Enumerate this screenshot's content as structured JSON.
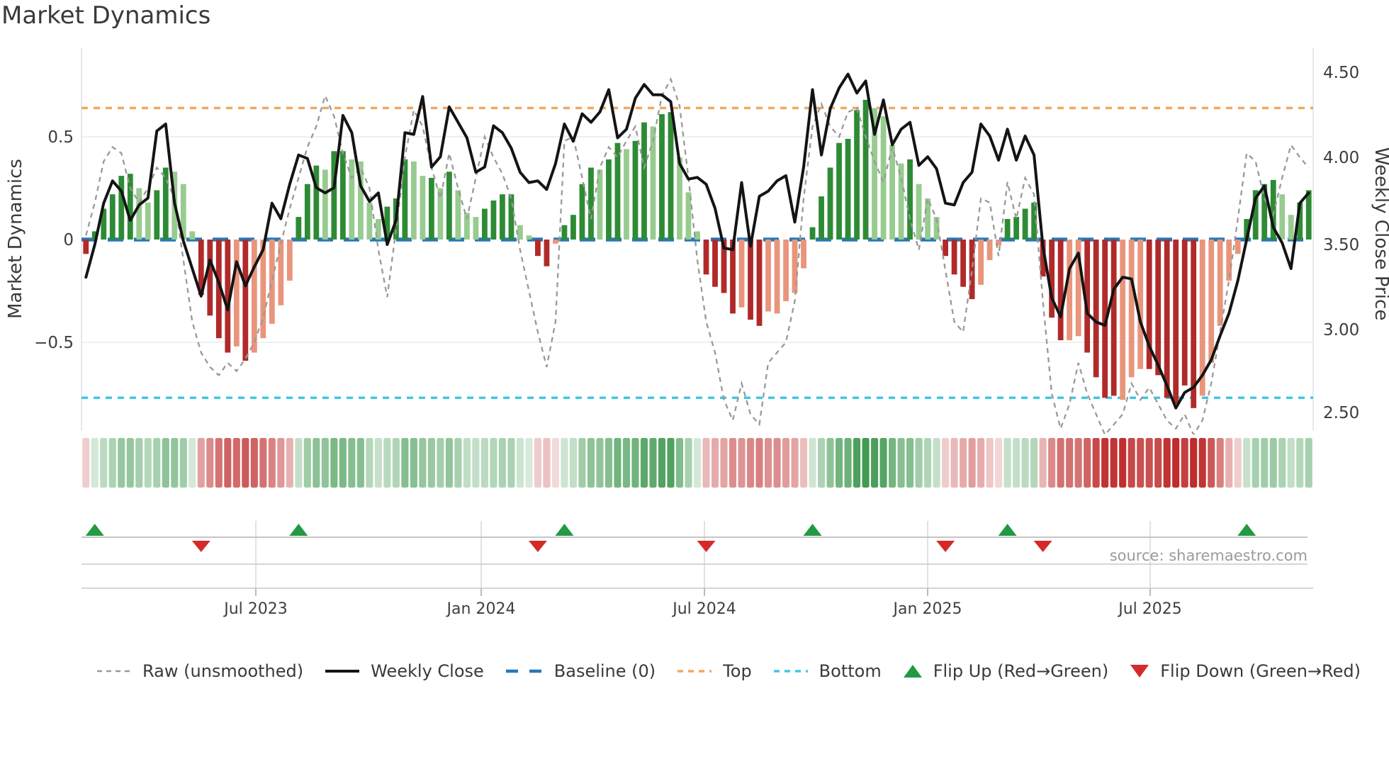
{
  "page": {
    "title": "Market Dynamics",
    "source_note": "source: sharemaestro.com"
  },
  "chart_data": {
    "type": "combo",
    "description": "Weekly oscillator bar chart (Market Dynamics, left axis) with smoothed weekly close price line (right axis), raw unsmoothed oscillator dashed line, baseline and top/bottom threshold lines, a color-intensity heatmap strip of the oscillator, and flip up/down trend-change markers.",
    "title": "Market Dynamics",
    "left_axis": {
      "label": "Market Dynamics",
      "tick_labels": [
        "0.5",
        "0",
        "−0.5"
      ],
      "tick_values": [
        0.5,
        0,
        -0.5
      ]
    },
    "right_axis": {
      "label": "Weekly Close Price",
      "tick_labels": [
        "4.50",
        "4.00",
        "3.50",
        "3.00",
        "2.50"
      ],
      "tick_values": [
        4.5,
        4.0,
        3.5,
        3.0,
        2.5
      ]
    },
    "x_ticks": [
      {
        "label": "Jul 2023"
      },
      {
        "label": "Jan 2024"
      },
      {
        "label": "Jul 2024"
      },
      {
        "label": "Jan 2025"
      },
      {
        "label": "Jul 2025"
      }
    ],
    "baseline_value": 0,
    "top_threshold": 0.64,
    "bottom_threshold": -0.77,
    "bars": {
      "name": "Market Dynamics oscillator (weekly)",
      "values": [
        -0.07,
        0.04,
        0.15,
        0.22,
        0.31,
        0.32,
        0.25,
        0.18,
        0.24,
        0.35,
        0.33,
        0.27,
        0.04,
        -0.27,
        -0.37,
        -0.48,
        -0.55,
        -0.52,
        -0.59,
        -0.55,
        -0.48,
        -0.41,
        -0.32,
        -0.2,
        0.11,
        0.27,
        0.36,
        0.34,
        0.43,
        0.43,
        0.39,
        0.38,
        0.18,
        0.1,
        0.16,
        0.2,
        0.39,
        0.38,
        0.31,
        0.3,
        0.25,
        0.33,
        0.24,
        0.13,
        0.11,
        0.15,
        0.19,
        0.22,
        0.22,
        0.07,
        0.02,
        -0.08,
        -0.13,
        -0.02,
        0.07,
        0.12,
        0.27,
        0.35,
        0.34,
        0.39,
        0.47,
        0.44,
        0.48,
        0.57,
        0.55,
        0.61,
        0.62,
        0.4,
        0.23,
        0.04,
        -0.17,
        -0.23,
        -0.26,
        -0.36,
        -0.33,
        -0.39,
        -0.42,
        -0.35,
        -0.36,
        -0.3,
        -0.26,
        -0.14,
        0.06,
        0.21,
        0.35,
        0.47,
        0.49,
        0.63,
        0.68,
        0.64,
        0.6,
        0.46,
        0.37,
        0.39,
        0.27,
        0.2,
        0.11,
        -0.08,
        -0.17,
        -0.23,
        -0.29,
        -0.22,
        -0.1,
        -0.03,
        0.1,
        0.11,
        0.15,
        0.18,
        -0.18,
        -0.38,
        -0.49,
        -0.49,
        -0.47,
        -0.55,
        -0.67,
        -0.77,
        -0.76,
        -0.78,
        -0.67,
        -0.63,
        -0.63,
        -0.66,
        -0.77,
        -0.8,
        -0.71,
        -0.82,
        -0.76,
        -0.6,
        -0.42,
        -0.2,
        -0.07,
        0.1,
        0.24,
        0.27,
        0.29,
        0.22,
        0.12,
        0.18,
        0.24
      ],
      "shades": "ddddddllddlllddddldlllllddd lddllll dddll dldlllddddll ddl ddddlddlddlddlll ddddlddlllll dddddddlllldlll ddddlll dddd dddlldddd lll dddddd lllll ddddlldd"
    },
    "weekly_close": [
      3.31,
      3.5,
      3.74,
      3.87,
      3.81,
      3.64,
      3.73,
      3.77,
      4.16,
      4.2,
      3.74,
      3.52,
      3.36,
      3.2,
      3.41,
      3.28,
      3.12,
      3.4,
      3.26,
      3.37,
      3.47,
      3.74,
      3.65,
      3.85,
      4.02,
      4.0,
      3.83,
      3.8,
      3.83,
      4.25,
      4.15,
      3.84,
      3.75,
      3.8,
      3.5,
      3.64,
      4.15,
      4.14,
      4.36,
      3.95,
      4.01,
      4.3,
      4.21,
      4.12,
      3.92,
      3.95,
      4.19,
      4.15,
      4.06,
      3.92,
      3.86,
      3.87,
      3.82,
      3.97,
      4.2,
      4.1,
      4.26,
      4.21,
      4.27,
      4.4,
      4.12,
      4.17,
      4.35,
      4.43,
      4.37,
      4.37,
      4.33,
      3.97,
      3.88,
      3.89,
      3.85,
      3.71,
      3.48,
      3.47,
      3.86,
      3.49,
      3.78,
      3.81,
      3.87,
      3.9,
      3.63,
      3.95,
      4.4,
      4.02,
      4.29,
      4.41,
      4.49,
      4.38,
      4.45,
      4.14,
      4.34,
      4.08,
      4.17,
      4.21,
      3.96,
      4.01,
      3.94,
      3.74,
      3.73,
      3.86,
      3.92,
      4.2,
      4.13,
      3.99,
      4.17,
      3.99,
      4.13,
      4.02,
      3.49,
      3.19,
      3.08,
      3.36,
      3.45,
      3.1,
      3.05,
      3.03,
      3.24,
      3.31,
      3.3,
      3.05,
      2.91,
      2.8,
      2.68,
      2.55,
      2.64,
      2.67,
      2.74,
      2.83,
      2.97,
      3.1,
      3.29,
      3.53,
      3.77,
      3.84,
      3.6,
      3.51,
      3.36,
      3.74,
      3.8
    ],
    "raw": [
      0.02,
      0.18,
      0.38,
      0.45,
      0.42,
      0.25,
      0.18,
      0.25,
      0.35,
      0.3,
      0.2,
      -0.1,
      -0.4,
      -0.55,
      -0.62,
      -0.66,
      -0.6,
      -0.64,
      -0.58,
      -0.5,
      -0.38,
      -0.2,
      -0.02,
      0.15,
      0.3,
      0.45,
      0.55,
      0.7,
      0.6,
      0.42,
      0.3,
      0.35,
      0.25,
      -0.05,
      -0.28,
      0.05,
      0.4,
      0.63,
      0.55,
      0.35,
      0.2,
      0.42,
      0.25,
      0.1,
      0.3,
      0.5,
      0.4,
      0.32,
      0.2,
      -0.05,
      -0.25,
      -0.45,
      -0.62,
      -0.4,
      0.48,
      0.5,
      0.3,
      0.1,
      0.35,
      0.45,
      0.4,
      0.48,
      0.55,
      0.35,
      0.48,
      0.7,
      0.78,
      0.65,
      0.3,
      -0.1,
      -0.4,
      -0.55,
      -0.78,
      -0.88,
      -0.7,
      -0.85,
      -0.9,
      -0.6,
      -0.55,
      -0.5,
      -0.3,
      0.2,
      0.55,
      0.66,
      0.55,
      0.5,
      0.62,
      0.64,
      0.5,
      0.38,
      0.28,
      0.45,
      0.3,
      0.1,
      -0.05,
      0.2,
      0.1,
      -0.15,
      -0.4,
      -0.45,
      -0.15,
      0.2,
      0.18,
      -0.08,
      0.28,
      0.1,
      0.3,
      0.22,
      -0.3,
      -0.75,
      -0.92,
      -0.8,
      -0.6,
      -0.75,
      -0.85,
      -0.95,
      -0.9,
      -0.85,
      -0.7,
      -0.78,
      -0.72,
      -0.8,
      -0.88,
      -0.92,
      -0.85,
      -0.95,
      -0.88,
      -0.7,
      -0.45,
      -0.2,
      0.1,
      0.42,
      0.38,
      0.2,
      0.12,
      0.3,
      0.46,
      0.4,
      0.35
    ],
    "flip_up_weeks": [
      1,
      24,
      54,
      82,
      104,
      131
    ],
    "flip_down_weeks": [
      13,
      51,
      70,
      97,
      108
    ],
    "legend": [
      {
        "label": "Raw (unsmoothed)",
        "type": "dashed-gray-line"
      },
      {
        "label": "Weekly Close",
        "type": "solid-black-line"
      },
      {
        "label": "Baseline (0)",
        "type": "dashed-blue-line"
      },
      {
        "label": "Top",
        "type": "dotted-orange-line"
      },
      {
        "label": "Bottom",
        "type": "dotted-cyan-line"
      },
      {
        "label": "Flip Up (Red→Green)",
        "type": "green-up-triangle"
      },
      {
        "label": "Flip Down (Green→Red)",
        "type": "red-down-triangle"
      }
    ],
    "colors": {
      "dark_green": "#2e8b35",
      "light_green": "#98cb90",
      "dark_red": "#b02a2a",
      "light_red": "#e9957b",
      "baseline": "#2878b5",
      "top": "#f0a860",
      "bottom": "#41c7e6",
      "raw": "#999999",
      "close": "#141414",
      "flip_up": "#229a43",
      "flip_down": "#d62a2a"
    },
    "grid": true,
    "legend_position": "bottom"
  }
}
